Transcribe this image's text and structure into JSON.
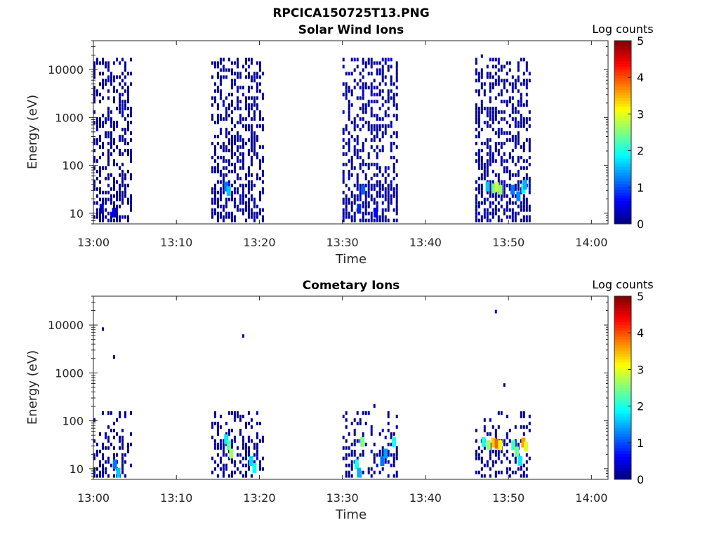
{
  "figure_title": "RPCICA150725T13.PNG",
  "chart_data": [
    {
      "type": "heatmap",
      "title": "Solar Wind Ions",
      "xlabel": "Time",
      "ylabel": "Energy (eV)",
      "y_scale": "log",
      "xlim": [
        "13:00",
        "14:02"
      ],
      "ylim": [
        6,
        40000
      ],
      "x_ticks": [
        "13:00",
        "13:10",
        "13:20",
        "13:30",
        "13:40",
        "13:50",
        "14:00"
      ],
      "y_ticks": [
        "10",
        "100",
        "1000",
        "10000"
      ],
      "colorbar": {
        "label": "Log counts",
        "range": [
          0,
          5
        ],
        "ticks": [
          "0",
          "1",
          "2",
          "3",
          "4",
          "5"
        ],
        "colormap": "jet"
      },
      "observation_windows": [
        {
          "start": "13:00.0",
          "end": "13:04.5"
        },
        {
          "start": "13:14.2",
          "end": "13:20.5"
        },
        {
          "start": "13:30.0",
          "end": "13:36.5"
        },
        {
          "start": "13:46.0",
          "end": "13:52.7"
        }
      ],
      "cells": [
        {
          "time": "13:01.0",
          "energy_eV": 12,
          "log_counts": 0.3
        },
        {
          "time": "13:02.5",
          "energy_eV": 10,
          "log_counts": 0.4
        },
        {
          "time": "13:16.0",
          "energy_eV": 35,
          "log_counts": 1.2
        },
        {
          "time": "13:16.3",
          "energy_eV": 28,
          "log_counts": 1.6
        },
        {
          "time": "13:32.0",
          "energy_eV": 12,
          "log_counts": 0.8
        },
        {
          "time": "13:32.5",
          "energy_eV": 30,
          "log_counts": 1.1
        },
        {
          "time": "13:34.0",
          "energy_eV": 10,
          "log_counts": 0.6
        },
        {
          "time": "13:47.5",
          "energy_eV": 35,
          "log_counts": 1.6
        },
        {
          "time": "13:48.2",
          "energy_eV": 32,
          "log_counts": 2.4
        },
        {
          "time": "13:48.6",
          "energy_eV": 34,
          "log_counts": 2.9
        },
        {
          "time": "13:49.0",
          "energy_eV": 30,
          "log_counts": 2.6
        },
        {
          "time": "13:50.5",
          "energy_eV": 30,
          "log_counts": 1.2
        },
        {
          "time": "13:51.2",
          "energy_eV": 22,
          "log_counts": 1.3
        },
        {
          "time": "13:51.8",
          "energy_eV": 32,
          "log_counts": 1.9
        },
        {
          "time": "13:52.0",
          "energy_eV": 38,
          "log_counts": 1.5
        }
      ]
    },
    {
      "type": "heatmap",
      "title": "Cometary Ions",
      "xlabel": "Time",
      "ylabel": "Energy (eV)",
      "y_scale": "log",
      "xlim": [
        "13:00",
        "14:02"
      ],
      "ylim": [
        6,
        40000
      ],
      "x_ticks": [
        "13:00",
        "13:10",
        "13:20",
        "13:30",
        "13:40",
        "13:50",
        "14:00"
      ],
      "y_ticks": [
        "10",
        "100",
        "1000",
        "10000"
      ],
      "colorbar": {
        "label": "Log counts",
        "range": [
          0,
          5
        ],
        "ticks": [
          "0",
          "1",
          "2",
          "3",
          "4",
          "5"
        ],
        "colormap": "jet"
      },
      "observation_windows": [
        {
          "start": "13:00.0",
          "end": "13:04.5"
        },
        {
          "start": "13:14.2",
          "end": "13:20.5"
        },
        {
          "start": "13:30.0",
          "end": "13:36.5"
        },
        {
          "start": "13:46.0",
          "end": "13:52.7"
        }
      ],
      "cells": [
        {
          "time": "13:02.6",
          "energy_eV": 12,
          "log_counts": 1.2
        },
        {
          "time": "13:03.0",
          "energy_eV": 8,
          "log_counts": 1.6
        },
        {
          "time": "13:16.0",
          "energy_eV": 40,
          "log_counts": 1.8
        },
        {
          "time": "13:16.3",
          "energy_eV": 30,
          "log_counts": 2.3
        },
        {
          "time": "13:16.6",
          "energy_eV": 20,
          "log_counts": 2.7
        },
        {
          "time": "13:19.0",
          "energy_eV": 14,
          "log_counts": 1.7
        },
        {
          "time": "13:19.4",
          "energy_eV": 10,
          "log_counts": 1.9
        },
        {
          "time": "13:31.7",
          "energy_eV": 12,
          "log_counts": 2.0
        },
        {
          "time": "13:32.0",
          "energy_eV": 8,
          "log_counts": 1.5
        },
        {
          "time": "13:32.4",
          "energy_eV": 35,
          "log_counts": 2.5
        },
        {
          "time": "13:34.8",
          "energy_eV": 14,
          "log_counts": 1.2
        },
        {
          "time": "13:35.2",
          "energy_eV": 20,
          "log_counts": 1.4
        },
        {
          "time": "13:36.2",
          "energy_eV": 35,
          "log_counts": 2.0
        },
        {
          "time": "13:47.0",
          "energy_eV": 35,
          "log_counts": 2.0
        },
        {
          "time": "13:47.6",
          "energy_eV": 30,
          "log_counts": 2.6
        },
        {
          "time": "13:48.2",
          "energy_eV": 34,
          "log_counts": 3.4
        },
        {
          "time": "13:48.6",
          "energy_eV": 32,
          "log_counts": 3.9
        },
        {
          "time": "13:49.0",
          "energy_eV": 30,
          "log_counts": 3.1
        },
        {
          "time": "13:50.6",
          "energy_eV": 30,
          "log_counts": 2.2
        },
        {
          "time": "13:51.0",
          "energy_eV": 22,
          "log_counts": 2.4
        },
        {
          "time": "13:51.4",
          "energy_eV": 14,
          "log_counts": 1.8
        },
        {
          "time": "13:51.8",
          "energy_eV": 34,
          "log_counts": 3.6
        },
        {
          "time": "13:52.1",
          "energy_eV": 28,
          "log_counts": 3.0
        }
      ]
    }
  ]
}
